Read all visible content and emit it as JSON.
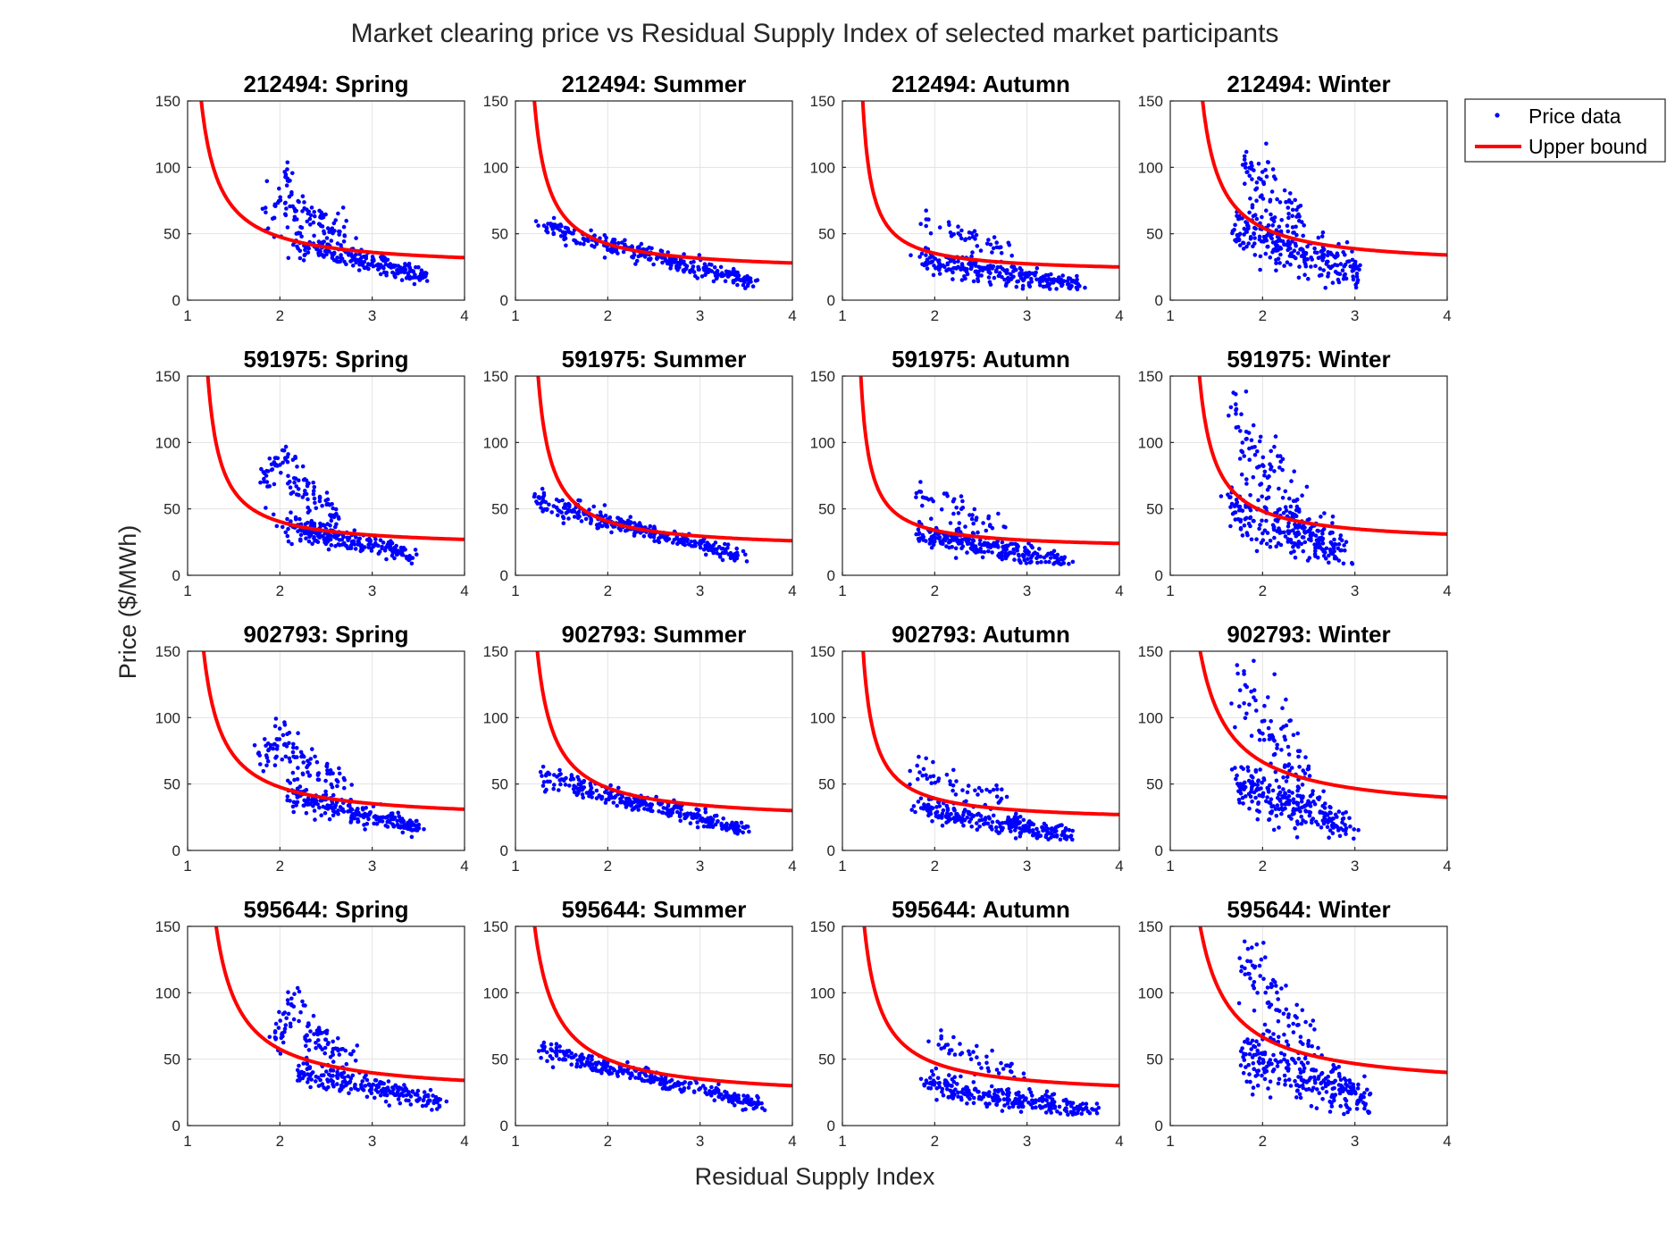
{
  "chart_data": {
    "type": "scatter",
    "title": "Market clearing price vs Residual Supply Index of selected market participants",
    "xlabel": "Residual Supply Index",
    "ylabel": "Price ($/MWh)",
    "xlim": [
      1,
      4
    ],
    "ylim": [
      0,
      150
    ],
    "xticks": [
      "1",
      "2",
      "3",
      "4"
    ],
    "yticks": [
      "0",
      "50",
      "100",
      "150"
    ],
    "grid": true,
    "legend": {
      "placement": "right",
      "entries": [
        {
          "label": "Price data",
          "color": "#0000ff",
          "marker": "dot"
        },
        {
          "label": "Upper bound",
          "color": "#ff0000",
          "marker": "line"
        }
      ]
    },
    "series_colors": {
      "price_data": "#0000ff",
      "upper_bound": "#ff0000"
    },
    "upper_bound_form": "price = a / (RSI - b)",
    "panels": [
      {
        "title": "212494: Spring",
        "upper_bound": {
          "a": 25,
          "b": 0.95,
          "y_at_4": 32
        },
        "clusters": [
          {
            "x": [
              2.15,
              3.6
            ],
            "y": [
              44,
              17
            ],
            "spread": 5,
            "n": 230
          },
          {
            "x": [
              1.9,
              2.1
            ],
            "y": [
              60,
              95
            ],
            "spread": 8,
            "n": 40
          },
          {
            "x": [
              2.1,
              2.7
            ],
            "y": [
              70,
              52
            ],
            "spread": 8,
            "n": 60
          }
        ]
      },
      {
        "title": "212494: Summer",
        "upper_bound": {
          "a": 20,
          "b": 1.05,
          "y_at_4": 28
        },
        "clusters": [
          {
            "x": [
              1.3,
              3.55
            ],
            "y": [
              55,
              14
            ],
            "spread": 4,
            "n": 300
          }
        ]
      },
      {
        "title": "212494: Autumn",
        "upper_bound": {
          "a": 13,
          "b": 1.12,
          "y_at_4": 25
        },
        "clusters": [
          {
            "x": [
              1.85,
              3.55
            ],
            "y": [
              30,
              11
            ],
            "spread": 5,
            "n": 250
          },
          {
            "x": [
              1.9,
              2.8
            ],
            "y": [
              58,
              37
            ],
            "spread": 6,
            "n": 45
          }
        ]
      },
      {
        "title": "212494: Winter",
        "upper_bound": {
          "a": 25,
          "b": 1.15,
          "y_at_4": 34
        },
        "clusters": [
          {
            "x": [
              1.7,
              3.05
            ],
            "y": [
              55,
              20
            ],
            "spread": 11,
            "n": 250
          },
          {
            "x": [
              1.8,
              2.4
            ],
            "y": [
              100,
              55
            ],
            "spread": 15,
            "n": 80
          }
        ]
      },
      {
        "title": "591975: Spring",
        "upper_bound": {
          "a": 18,
          "b": 1.08,
          "y_at_4": 27
        },
        "clusters": [
          {
            "x": [
              2.05,
              3.45
            ],
            "y": [
              38,
              16
            ],
            "spread": 5,
            "n": 230
          },
          {
            "x": [
              1.8,
              2.1
            ],
            "y": [
              65,
              95
            ],
            "spread": 9,
            "n": 40
          },
          {
            "x": [
              2.1,
              2.6
            ],
            "y": [
              70,
              50
            ],
            "spread": 8,
            "n": 60
          }
        ]
      },
      {
        "title": "591975: Summer",
        "upper_bound": {
          "a": 19,
          "b": 1.1,
          "y_at_4": 26
        },
        "clusters": [
          {
            "x": [
              1.25,
              3.45
            ],
            "y": [
              55,
              14
            ],
            "spread": 4,
            "n": 300
          }
        ]
      },
      {
        "title": "591975: Autumn",
        "upper_bound": {
          "a": 13,
          "b": 1.1,
          "y_at_4": 24
        },
        "clusters": [
          {
            "x": [
              1.8,
              3.4
            ],
            "y": [
              32,
              11
            ],
            "spread": 5,
            "n": 250
          },
          {
            "x": [
              1.8,
              2.8
            ],
            "y": [
              62,
              35
            ],
            "spread": 6,
            "n": 45
          }
        ]
      },
      {
        "title": "591975: Winter",
        "upper_bound": {
          "a": 21,
          "b": 1.15,
          "y_at_4": 31
        },
        "clusters": [
          {
            "x": [
              1.65,
              2.9
            ],
            "y": [
              50,
              19
            ],
            "spread": 11,
            "n": 250
          },
          {
            "x": [
              1.65,
              2.4
            ],
            "y": [
              120,
              50
            ],
            "spread": 15,
            "n": 80
          }
        ]
      },
      {
        "title": "902793: Spring",
        "upper_bound": {
          "a": 26,
          "b": 0.97,
          "y_at_4": 31
        },
        "clusters": [
          {
            "x": [
              2.1,
              3.5
            ],
            "y": [
              42,
              17
            ],
            "spread": 5,
            "n": 230
          },
          {
            "x": [
              1.8,
              2.1
            ],
            "y": [
              65,
              95
            ],
            "spread": 9,
            "n": 40
          },
          {
            "x": [
              2.1,
              2.65
            ],
            "y": [
              70,
              52
            ],
            "spread": 8,
            "n": 60
          }
        ]
      },
      {
        "title": "902793: Summer",
        "upper_bound": {
          "a": 24,
          "b": 1.05,
          "y_at_4": 30
        },
        "clusters": [
          {
            "x": [
              1.3,
              3.5
            ],
            "y": [
              55,
              15
            ],
            "spread": 4,
            "n": 300
          }
        ]
      },
      {
        "title": "902793: Autumn",
        "upper_bound": {
          "a": 16,
          "b": 1.1,
          "y_at_4": 27
        },
        "clusters": [
          {
            "x": [
              1.8,
              3.45
            ],
            "y": [
              32,
              11
            ],
            "spread": 5,
            "n": 250
          },
          {
            "x": [
              1.8,
              2.85
            ],
            "y": [
              62,
              35
            ],
            "spread": 6,
            "n": 45
          }
        ]
      },
      {
        "title": "902793: Winter",
        "upper_bound": {
          "a": 40,
          "b": 1.0,
          "y_at_4": 40
        },
        "clusters": [
          {
            "x": [
              1.7,
              2.95
            ],
            "y": [
              50,
              19
            ],
            "spread": 11,
            "n": 250
          },
          {
            "x": [
              1.7,
              2.5
            ],
            "y": [
              125,
              55
            ],
            "spread": 15,
            "n": 80
          }
        ]
      },
      {
        "title": "595644: Spring",
        "upper_bound": {
          "a": 33,
          "b": 1.05,
          "y_at_4": 34
        },
        "clusters": [
          {
            "x": [
              2.2,
              3.75
            ],
            "y": [
              42,
              17
            ],
            "spread": 5,
            "n": 230
          },
          {
            "x": [
              1.95,
              2.2
            ],
            "y": [
              65,
              95
            ],
            "spread": 9,
            "n": 40
          },
          {
            "x": [
              2.2,
              2.8
            ],
            "y": [
              72,
              55
            ],
            "spread": 8,
            "n": 60
          }
        ]
      },
      {
        "title": "595644: Summer",
        "upper_bound": {
          "a": 31,
          "b": 0.97,
          "y_at_4": 30
        },
        "clusters": [
          {
            "x": [
              1.3,
              3.7
            ],
            "y": [
              56,
              15
            ],
            "spread": 4,
            "n": 300
          }
        ]
      },
      {
        "title": "595644: Autumn",
        "upper_bound": {
          "a": 24,
          "b": 1.05,
          "y_at_4": 30
        },
        "clusters": [
          {
            "x": [
              1.9,
              3.7
            ],
            "y": [
              30,
              11
            ],
            "spread": 5,
            "n": 250
          },
          {
            "x": [
              2.0,
              2.95
            ],
            "y": [
              62,
              38
            ],
            "spread": 6,
            "n": 45
          }
        ]
      },
      {
        "title": "595644: Winter",
        "upper_bound": {
          "a": 40,
          "b": 1.0,
          "y_at_4": 40
        },
        "clusters": [
          {
            "x": [
              1.8,
              3.15
            ],
            "y": [
              52,
              19
            ],
            "spread": 11,
            "n": 250
          },
          {
            "x": [
              1.75,
              2.6
            ],
            "y": [
              125,
              60
            ],
            "spread": 15,
            "n": 80
          }
        ]
      }
    ]
  }
}
